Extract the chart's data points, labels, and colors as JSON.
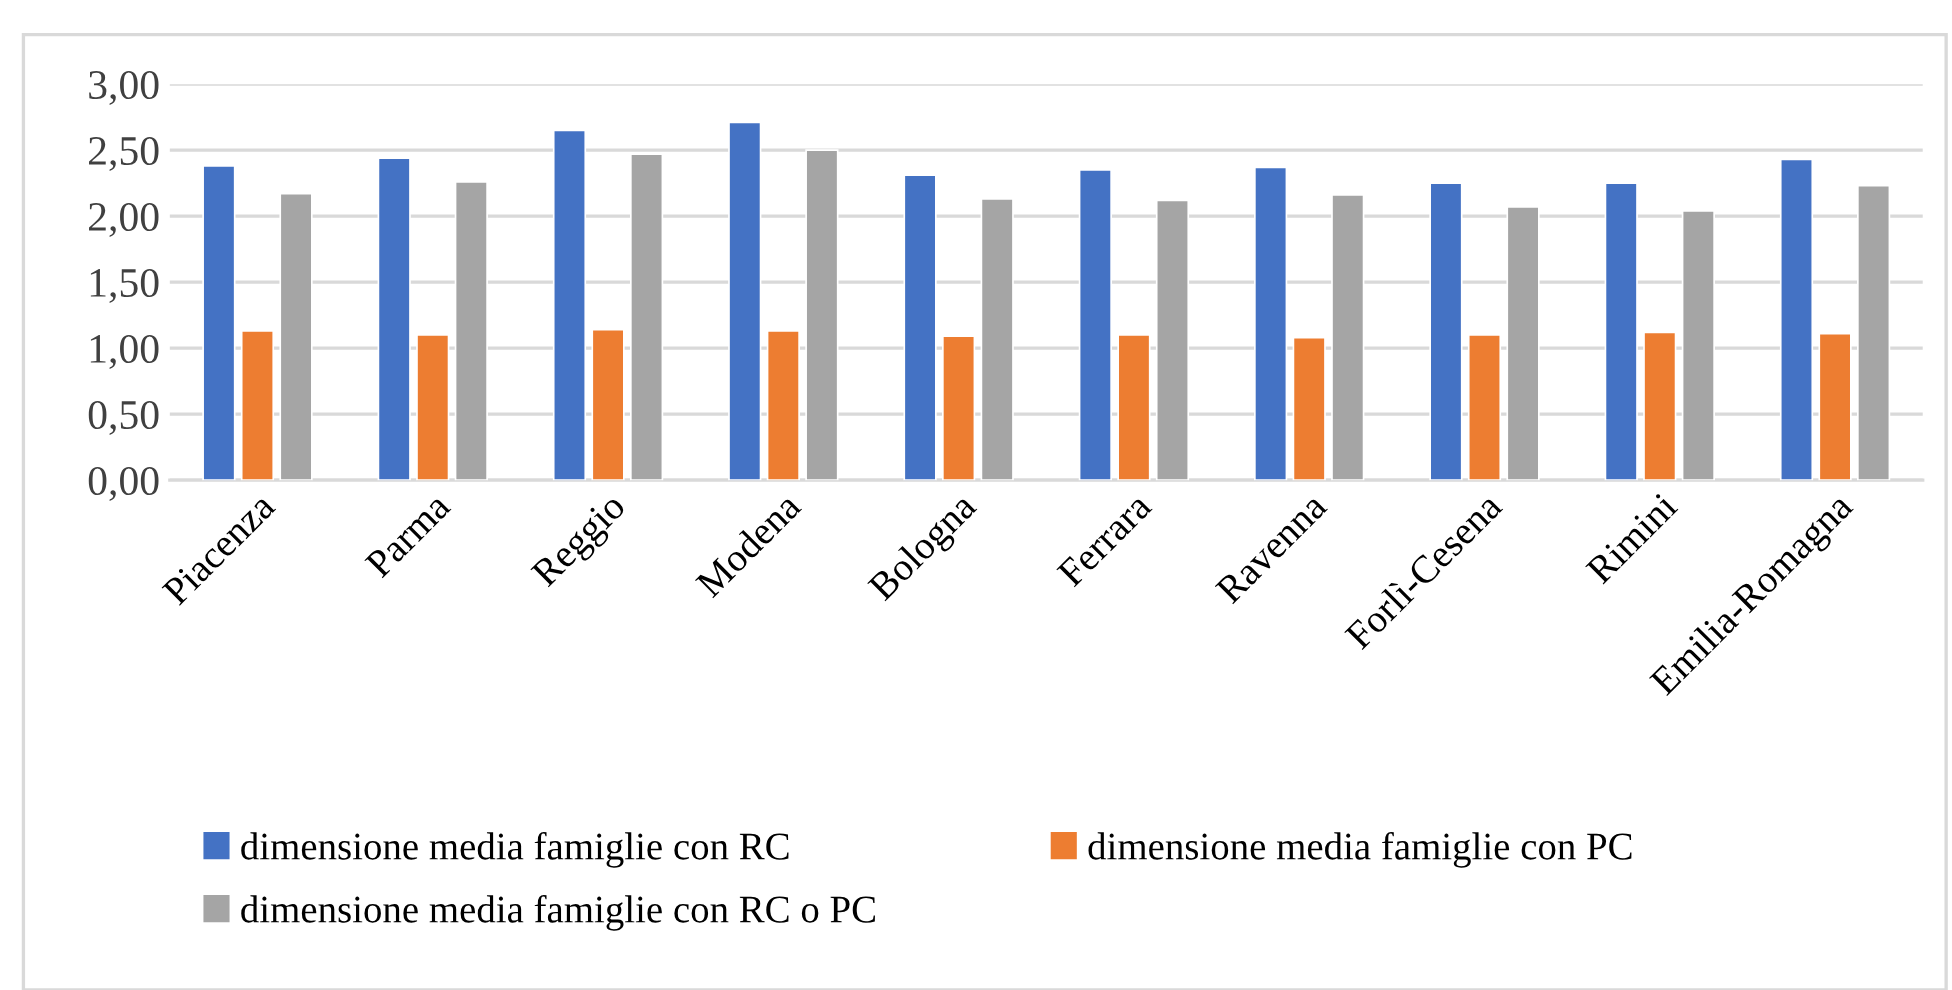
{
  "chart_data": {
    "type": "bar",
    "categories": [
      "Piacenza",
      "Parma",
      "Reggio",
      "Modena",
      "Bologna",
      "Ferrara",
      "Ravenna",
      "Forlì-Cesena",
      "Rimini",
      "Emilia-Romagna"
    ],
    "series": [
      {
        "name": "dimensione media famiglie con RC",
        "color": "#4472c4",
        "values": [
          2.38,
          2.44,
          2.65,
          2.71,
          2.31,
          2.35,
          2.37,
          2.25,
          2.25,
          2.43
        ]
      },
      {
        "name": "dimensione media famiglie con PC",
        "color": "#ed7d31",
        "values": [
          1.13,
          1.1,
          1.14,
          1.13,
          1.09,
          1.1,
          1.08,
          1.1,
          1.12,
          1.11
        ]
      },
      {
        "name": "dimensione media famiglie con RC o PC",
        "color": "#a5a5a5",
        "values": [
          2.17,
          2.26,
          2.47,
          2.5,
          2.13,
          2.12,
          2.16,
          2.07,
          2.04,
          2.23
        ]
      }
    ],
    "ylim": [
      0,
      3
    ],
    "yticks": [
      {
        "value": 0,
        "label": "0,00"
      },
      {
        "value": 0.5,
        "label": "0,50"
      },
      {
        "value": 1,
        "label": "1,00"
      },
      {
        "value": 1.5,
        "label": "1,50"
      },
      {
        "value": 2,
        "label": "2,00"
      },
      {
        "value": 2.5,
        "label": "2,50"
      },
      {
        "value": 3,
        "label": "3,00"
      }
    ],
    "grid": "y",
    "legend": "bottom"
  }
}
